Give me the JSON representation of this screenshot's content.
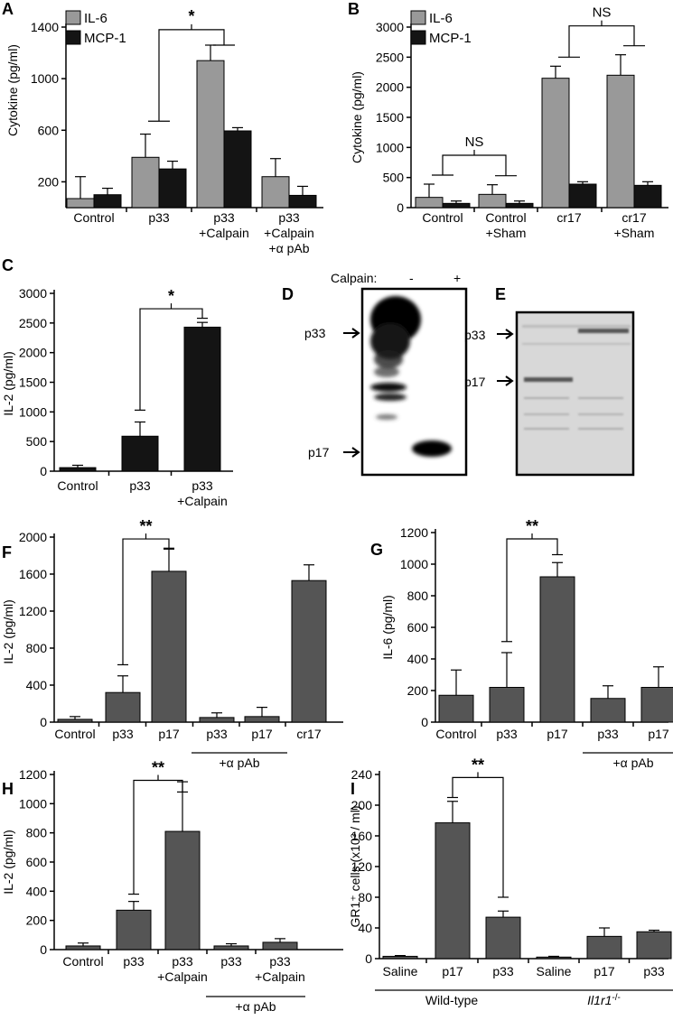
{
  "colors": {
    "gray": "#999999",
    "darkgray": "#555555",
    "black": "#141414"
  },
  "chart_data": [
    {
      "id": "A",
      "type": "bar",
      "letter": "A",
      "ylabel": "Cytokine (pg/ml)",
      "ylim": [
        0,
        1400
      ],
      "yticks": [
        200,
        600,
        1000,
        1400
      ],
      "yticklabels": [
        "200",
        "600",
        "1000",
        "1400"
      ],
      "categories": [
        [
          "Control"
        ],
        [
          "p33"
        ],
        [
          "p33",
          "+Calpain"
        ],
        [
          "p33",
          "+Calpain",
          "+α pAb"
        ]
      ],
      "legend": [
        "IL-6",
        "MCP-1"
      ],
      "legend_position": "top-left",
      "series": [
        {
          "name": "IL-6",
          "color": "#999999",
          "values": [
            70,
            390,
            1140,
            240
          ],
          "errors": [
            170,
            180,
            120,
            140
          ]
        },
        {
          "name": "MCP-1",
          "color": "#141414",
          "values": [
            100,
            300,
            595,
            95
          ],
          "errors": [
            50,
            60,
            25,
            70
          ]
        }
      ],
      "annotations": [
        {
          "text": "*",
          "from_group": 1,
          "to_group": 2,
          "style": "bracket"
        }
      ]
    },
    {
      "id": "B",
      "type": "bar",
      "letter": "B",
      "ylabel": "Cytokine (pg/ml)",
      "ylim": [
        0,
        3000
      ],
      "yticks": [
        0,
        500,
        1000,
        1500,
        2000,
        2500,
        3000
      ],
      "yticklabels": [
        "0",
        "500",
        "1000",
        "1500",
        "2000",
        "2500",
        "3000"
      ],
      "categories": [
        [
          "Control"
        ],
        [
          "Control",
          "+Sham"
        ],
        [
          "cr17"
        ],
        [
          "cr17",
          "+Sham"
        ]
      ],
      "legend": [
        "IL-6",
        "MCP-1"
      ],
      "legend_position": "top-left",
      "series": [
        {
          "name": "IL-6",
          "color": "#999999",
          "values": [
            170,
            220,
            2150,
            2200
          ],
          "errors": [
            220,
            160,
            200,
            340
          ]
        },
        {
          "name": "MCP-1",
          "color": "#141414",
          "values": [
            70,
            70,
            390,
            370
          ],
          "errors": [
            40,
            40,
            40,
            60
          ]
        }
      ],
      "annotations": [
        {
          "text": "NS",
          "from_group": 0,
          "to_group": 1,
          "style": "fork"
        },
        {
          "text": "NS",
          "from_group": 2,
          "to_group": 3,
          "style": "fork"
        }
      ]
    },
    {
      "id": "C",
      "type": "bar",
      "letter": "C",
      "ylabel": "IL-2 (pg/ml)",
      "ylim": [
        0,
        3000
      ],
      "yticks": [
        0,
        500,
        1000,
        1500,
        2000,
        2500,
        3000
      ],
      "yticklabels": [
        "0",
        "500",
        "1000",
        "1500",
        "2000",
        "2500",
        "3000"
      ],
      "categories": [
        [
          "Control"
        ],
        [
          "p33"
        ],
        [
          "p33",
          "+Calpain"
        ]
      ],
      "series": [
        {
          "name": "",
          "color": "#141414",
          "values": [
            60,
            590,
            2430
          ],
          "errors": [
            40,
            240,
            80
          ]
        }
      ],
      "annotations": [
        {
          "text": "*",
          "from": 1,
          "to": 2,
          "style": "bracket",
          "left_level": 1030,
          "right_level": 2580,
          "top_level": 2740
        }
      ]
    },
    {
      "id": "F",
      "type": "bar",
      "letter": "F",
      "ylabel": "IL-2 (pg/ml)",
      "ylim": [
        0,
        2000
      ],
      "yticks": [
        0,
        400,
        800,
        1200,
        1600,
        2000
      ],
      "yticklabels": [
        "0",
        "400",
        "800",
        "1200",
        "1600",
        "2000"
      ],
      "categories": [
        [
          "Control"
        ],
        [
          "p33"
        ],
        [
          "p17"
        ],
        [
          "p33"
        ],
        [
          "p17"
        ],
        [
          "cr17"
        ]
      ],
      "series": [
        {
          "name": "",
          "color": "#555555",
          "values": [
            30,
            320,
            1630,
            50,
            60,
            1530
          ],
          "errors": [
            30,
            180,
            240,
            50,
            100,
            170
          ]
        }
      ],
      "groups": [
        {
          "text": "+α pAb",
          "from": 3,
          "to": 4
        }
      ],
      "annotations": [
        {
          "text": "**",
          "from": 1,
          "to": 2,
          "style": "bracket",
          "left_level": 620,
          "right_level": 1880,
          "top_level": 1980
        }
      ]
    },
    {
      "id": "G",
      "type": "bar",
      "letter": "G",
      "ylabel": "IL-6 (pg/ml)",
      "ylim": [
        0,
        1200
      ],
      "yticks": [
        0,
        200,
        400,
        600,
        800,
        1000,
        1200
      ],
      "yticklabels": [
        "0",
        "200",
        "400",
        "600",
        "800",
        "1000",
        "1200"
      ],
      "categories": [
        [
          "Control"
        ],
        [
          "p33"
        ],
        [
          "p17"
        ],
        [
          "p33"
        ],
        [
          "p17"
        ]
      ],
      "series": [
        {
          "name": "",
          "color": "#555555",
          "values": [
            170,
            220,
            920,
            150,
            220
          ],
          "errors": [
            160,
            220,
            90,
            80,
            130
          ]
        }
      ],
      "groups": [
        {
          "text": "+α pAb",
          "from": 3,
          "to": 4
        }
      ],
      "annotations": [
        {
          "text": "**",
          "from": 1,
          "to": 2,
          "style": "bracket",
          "left_level": 510,
          "right_level": 1060,
          "top_level": 1160
        }
      ]
    },
    {
      "id": "H",
      "type": "bar",
      "letter": "H",
      "ylabel": "IL-2 (pg/ml)",
      "ylim": [
        0,
        1200
      ],
      "yticks": [
        0,
        200,
        400,
        600,
        800,
        1000,
        1200
      ],
      "yticklabels": [
        "0",
        "200",
        "400",
        "600",
        "800",
        "1000",
        "1200"
      ],
      "categories": [
        [
          "Control"
        ],
        [
          "p33"
        ],
        [
          "p33",
          "+Calpain"
        ],
        [
          "p33"
        ],
        [
          "p33",
          "+Calpain"
        ]
      ],
      "series": [
        {
          "name": "",
          "color": "#555555",
          "values": [
            25,
            270,
            810,
            25,
            50
          ],
          "errors": [
            20,
            60,
            340,
            15,
            25
          ]
        }
      ],
      "groups": [
        {
          "text": "+α pAb",
          "from": 3,
          "to": 4
        }
      ],
      "annotations": [
        {
          "text": "**",
          "from": 1,
          "to": 2,
          "style": "bracket",
          "left_level": 380,
          "right_level": 1080,
          "top_level": 1160
        }
      ]
    },
    {
      "id": "I",
      "type": "bar",
      "letter": "I",
      "ylabel": "GR1⁺ cells (x10³ / ml)",
      "ylim": [
        0,
        240
      ],
      "yticks": [
        0,
        40,
        80,
        120,
        160,
        200,
        240
      ],
      "yticklabels": [
        "0",
        "40",
        "80",
        "120",
        "160",
        "200",
        "240"
      ],
      "categories": [
        [
          "Saline"
        ],
        [
          "p17"
        ],
        [
          "p33"
        ],
        [
          "Saline"
        ],
        [
          "p17"
        ],
        [
          "p33"
        ]
      ],
      "series": [
        {
          "name": "",
          "color": "#555555",
          "values": [
            3,
            177,
            54,
            2,
            29,
            35
          ],
          "errors": [
            1,
            28,
            8,
            1,
            11,
            2
          ]
        }
      ],
      "groups": [
        {
          "text": "Wild-type",
          "from": 0,
          "to": 2
        },
        {
          "text": "Il1r1",
          "sup": "-/-",
          "from": 3,
          "to": 5,
          "italic": true
        }
      ],
      "annotations": [
        {
          "text": "**",
          "from": 1,
          "to": 2,
          "style": "bracket",
          "left_level": 210,
          "right_level": 80,
          "top_level": 236
        }
      ]
    }
  ],
  "blots": {
    "D": {
      "letter": "D",
      "header": "Calpain:",
      "lanes": [
        "-",
        "+"
      ],
      "markers": [
        "p33",
        "p17"
      ]
    },
    "E": {
      "letter": "E",
      "markers": [
        "p33",
        "p17"
      ]
    }
  }
}
